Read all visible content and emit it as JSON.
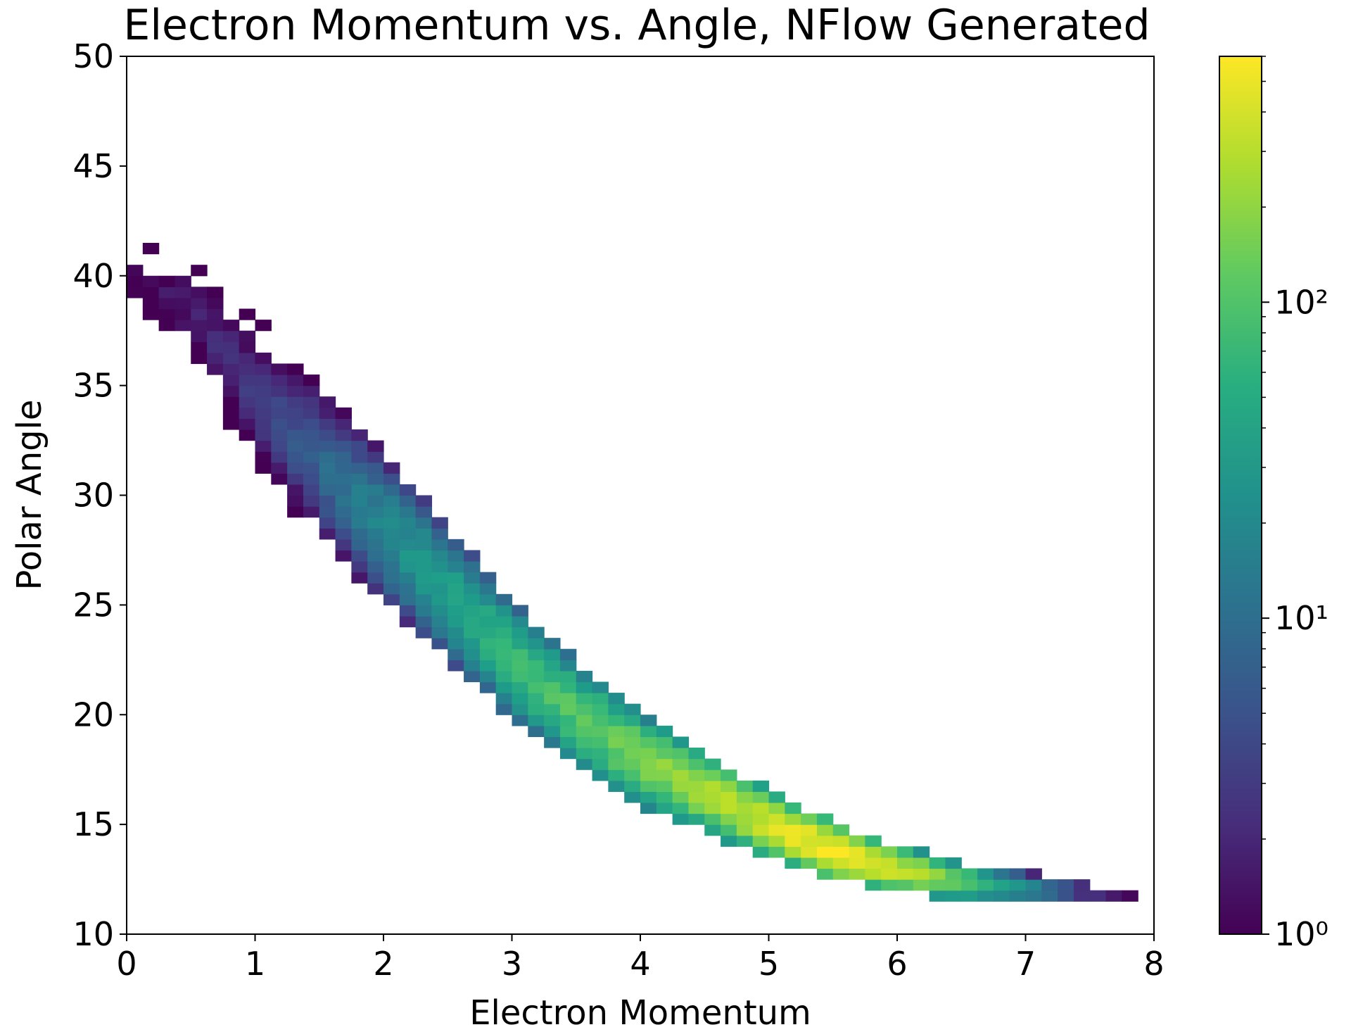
{
  "chart_data": {
    "type": "heatmap",
    "title": "Electron Momentum vs. Angle, NFlow Generated",
    "xlabel": "Electron Momentum",
    "ylabel": "Polar Angle",
    "xlim": [
      0,
      8
    ],
    "ylim": [
      10,
      50
    ],
    "x_ticks": [
      0,
      1,
      2,
      3,
      4,
      5,
      6,
      7,
      8
    ],
    "y_ticks": [
      10,
      15,
      20,
      25,
      30,
      35,
      40,
      45,
      50
    ],
    "grid": false,
    "colormap": "viridis",
    "colorbar": {
      "scale": "log",
      "range": [
        1,
        600
      ],
      "ticks": [
        {
          "value": 1,
          "label": "10⁰"
        },
        {
          "value": 10,
          "label": "10¹"
        },
        {
          "value": 100,
          "label": "10²"
        }
      ]
    },
    "bins": {
      "x_count": 64,
      "y_count": 80,
      "x_width": 0.125,
      "y_width": 0.5
    },
    "ridge": [
      {
        "x": 0.0,
        "y": 40.0
      },
      {
        "x": 0.5,
        "y": 38.5
      },
      {
        "x": 1.0,
        "y": 34.5
      },
      {
        "x": 1.5,
        "y": 31.5
      },
      {
        "x": 2.0,
        "y": 28.5
      },
      {
        "x": 2.5,
        "y": 25.5
      },
      {
        "x": 3.0,
        "y": 22.5
      },
      {
        "x": 3.5,
        "y": 20.0
      },
      {
        "x": 4.0,
        "y": 18.0
      },
      {
        "x": 4.5,
        "y": 16.5
      },
      {
        "x": 5.0,
        "y": 15.0
      },
      {
        "x": 5.5,
        "y": 13.8
      },
      {
        "x": 6.0,
        "y": 13.0
      },
      {
        "x": 6.5,
        "y": 12.4
      },
      {
        "x": 7.0,
        "y": 12.1
      },
      {
        "x": 7.5,
        "y": 11.9
      },
      {
        "x": 7.8,
        "y": 11.8
      }
    ],
    "peak_counts": [
      {
        "x": 0.0,
        "count": 1
      },
      {
        "x": 1.0,
        "count": 3
      },
      {
        "x": 1.5,
        "count": 8
      },
      {
        "x": 2.0,
        "count": 20
      },
      {
        "x": 2.5,
        "count": 40
      },
      {
        "x": 3.0,
        "count": 70
      },
      {
        "x": 3.5,
        "count": 110
      },
      {
        "x": 4.0,
        "count": 170
      },
      {
        "x": 4.5,
        "count": 250
      },
      {
        "x": 5.0,
        "count": 380
      },
      {
        "x": 5.5,
        "count": 600
      },
      {
        "x": 6.0,
        "count": 380
      },
      {
        "x": 6.5,
        "count": 120
      },
      {
        "x": 7.0,
        "count": 25
      },
      {
        "x": 7.5,
        "count": 3
      },
      {
        "x": 7.8,
        "count": 1
      }
    ],
    "band_halfwidth": [
      {
        "x": 0.0,
        "w": 1.5
      },
      {
        "x": 1.0,
        "w": 3.5
      },
      {
        "x": 2.0,
        "w": 3.2
      },
      {
        "x": 3.0,
        "w": 2.6
      },
      {
        "x": 4.0,
        "w": 2.0
      },
      {
        "x": 5.0,
        "w": 1.5
      },
      {
        "x": 6.0,
        "w": 1.0
      },
      {
        "x": 7.0,
        "w": 0.7
      },
      {
        "x": 7.8,
        "w": 0.5
      }
    ]
  }
}
